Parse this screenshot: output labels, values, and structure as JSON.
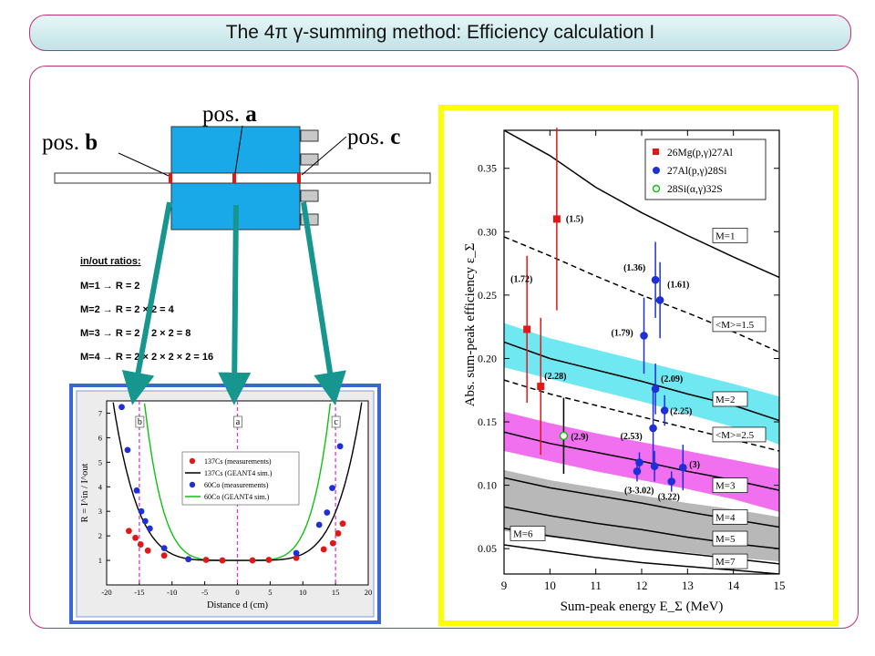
{
  "slide": {
    "title": "The 4π γ-summing method: Efficiency calculation I"
  },
  "detector": {
    "pos_a_prefix": "pos. ",
    "pos_a_letter": "a",
    "pos_b_prefix": "pos. ",
    "pos_b_letter": "b",
    "pos_c_prefix": "pos. ",
    "pos_c_letter": "c"
  },
  "ratios": {
    "heading": "in/out ratios:",
    "lines": [
      "M=1 → R = 2",
      "M=2 → R = 2 × 2  = 4",
      "M=3 → R = 2 × 2 × 2 = 8",
      "M=4 → R = 2 × 2 × 2 × 2 = 16"
    ]
  },
  "colors": {
    "title_border": "#c0307a",
    "arrow": "#17968f",
    "detector_fill": "#1aa9e8",
    "left_plot_frame": "#3a66d6",
    "right_plot_frame": "#ffff00",
    "cyan_band": "#6fe8f2",
    "magenta_band": "#f070f0",
    "gray_band": "#b8b8b8"
  },
  "chart_data": [
    {
      "type": "scatter",
      "xlabel": "Distance d (cm)",
      "ylabel": "R = I^in / I^out",
      "xlim": [
        -20,
        20
      ],
      "ylim": [
        0,
        7.5
      ],
      "x_ticks": [
        "-20",
        "-15",
        "-10",
        "-5",
        "0",
        "5",
        "10",
        "15",
        "20"
      ],
      "y_ticks": [
        "1",
        "2",
        "3",
        "4",
        "5",
        "6",
        "7"
      ],
      "position_markers": [
        {
          "label": "b",
          "x": -15
        },
        {
          "label": "a",
          "x": 0
        },
        {
          "label": "c",
          "x": 15
        }
      ],
      "legend": [
        "137Cs (measurements)",
        "137Cs (GEANT4 sim.)",
        "60Co (measurements)",
        "60Co (GEANT4 sim.)"
      ],
      "series": [
        {
          "name": "137Cs (measurements)",
          "color": "#e01818",
          "x": [
            -16.6,
            -15.6,
            -14.8,
            -13.7,
            -11.2,
            -7.5,
            -4.8,
            -2.3,
            2.3,
            4.8,
            9.0,
            13.2,
            14.6,
            15.4,
            16.1
          ],
          "y": [
            2.2,
            1.92,
            1.65,
            1.4,
            1.2,
            1.05,
            1.02,
            1.0,
            1.0,
            1.02,
            1.1,
            1.45,
            1.7,
            2.1,
            2.5
          ]
        },
        {
          "name": "60Co (measurements)",
          "color": "#1f2fd8",
          "x": [
            -17.7,
            -16.8,
            -15.4,
            -14.7,
            -14.1,
            -13.4,
            -11.2,
            -7.5,
            9.0,
            12.5,
            13.7,
            14.5,
            15.7
          ],
          "y": [
            7.25,
            5.5,
            3.85,
            3.0,
            2.6,
            2.3,
            1.5,
            1.05,
            1.3,
            2.45,
            2.95,
            3.95,
            5.65
          ]
        },
        {
          "name": "137Cs (GEANT4 sim.)",
          "color": "#000000",
          "kind": "line",
          "fn": "cs"
        },
        {
          "name": "60Co (GEANT4 sim.)",
          "color": "#10c010",
          "kind": "line",
          "fn": "co"
        }
      ]
    },
    {
      "type": "scatter",
      "xlabel": "Sum-peak energy E_Σ (MeV)",
      "ylabel": "Abs. sum-peak efficiency ε_Σ",
      "xlim": [
        9,
        15
      ],
      "ylim": [
        0.03,
        0.38
      ],
      "x_ticks": [
        "9",
        "10",
        "11",
        "12",
        "13",
        "14",
        "15"
      ],
      "y_ticks": [
        "0.05",
        "0.10",
        "0.15",
        "0.20",
        "0.25",
        "0.30",
        "0.35"
      ],
      "legend": [
        {
          "label": "26Mg(p,γ)27Al",
          "color": "#e01818",
          "marker": "square"
        },
        {
          "label": "27Al(p,γ)28Si",
          "color": "#1f2fd8",
          "marker": "circle"
        },
        {
          "label": "28Si(α,γ)32S",
          "color": "#10c010",
          "marker": "open-circle"
        }
      ],
      "curves": [
        {
          "label": "M=1",
          "style": "solid",
          "x": [
            9,
            10,
            11,
            12,
            13,
            14,
            15
          ],
          "y": [
            0.38,
            0.36,
            0.335,
            0.315,
            0.297,
            0.28,
            0.264
          ]
        },
        {
          "label": "<M>=1.5",
          "style": "dashed",
          "x": [
            9,
            10,
            11,
            12,
            13,
            14,
            15
          ],
          "y": [
            0.296,
            0.281,
            0.265,
            0.25,
            0.236,
            0.221,
            0.205
          ]
        },
        {
          "label": "M=2",
          "style": "solid-band",
          "x": [
            9,
            10,
            11,
            12,
            13,
            14,
            15
          ],
          "y": [
            0.213,
            0.2,
            0.191,
            0.182,
            0.172,
            0.163,
            0.151
          ],
          "band": [
            [
              0.228,
              0.193
            ],
            [
              0.216,
              0.184
            ],
            [
              0.207,
              0.175
            ],
            [
              0.198,
              0.166
            ],
            [
              0.189,
              0.156
            ],
            [
              0.18,
              0.146
            ],
            [
              0.17,
              0.132
            ]
          ]
        },
        {
          "label": "<M>=2.5",
          "style": "dashed",
          "x": [
            9,
            10,
            11,
            12,
            13,
            14,
            15
          ],
          "y": [
            0.183,
            0.172,
            0.163,
            0.154,
            0.145,
            0.136,
            0.127
          ]
        },
        {
          "label": "M=3",
          "style": "solid-band",
          "x": [
            9,
            10,
            11,
            12,
            13,
            14,
            15
          ],
          "y": [
            0.142,
            0.133,
            0.126,
            0.119,
            0.111,
            0.104,
            0.096
          ],
          "band": [
            [
              0.158,
              0.127
            ],
            [
              0.149,
              0.119
            ],
            [
              0.141,
              0.111
            ],
            [
              0.134,
              0.104
            ],
            [
              0.127,
              0.097
            ],
            [
              0.12,
              0.089
            ],
            [
              0.113,
              0.079
            ]
          ]
        },
        {
          "label": "M=4",
          "style": "solid-band",
          "x": [
            9,
            10,
            11,
            12,
            13,
            14,
            15
          ],
          "y": [
            0.106,
            0.098,
            0.092,
            0.086,
            0.079,
            0.073,
            0.067
          ],
          "band": [
            [
              0.112,
              0.064
            ],
            [
              0.104,
              0.059
            ],
            [
              0.098,
              0.055
            ],
            [
              0.092,
              0.05
            ],
            [
              0.086,
              0.047
            ],
            [
              0.081,
              0.043
            ],
            [
              0.075,
              0.04
            ]
          ]
        },
        {
          "label": "M=5",
          "style": "solid",
          "x": [
            9,
            10,
            11,
            12,
            13,
            14,
            15
          ],
          "y": [
            0.083,
            0.076,
            0.07,
            0.065,
            0.059,
            0.054,
            0.05
          ]
        },
        {
          "label": "M=6",
          "style": "solid",
          "x": [
            9,
            10,
            11,
            12,
            13,
            14,
            15
          ],
          "y": [
            0.066,
            0.06,
            0.055,
            0.05,
            0.046,
            0.042,
            0.038
          ]
        },
        {
          "label": "M=7",
          "style": "solid",
          "x": [
            9,
            10,
            11,
            12,
            13,
            14,
            15
          ],
          "y": [
            0.053,
            0.048,
            0.043,
            0.039,
            0.036,
            0.033,
            0.03
          ]
        }
      ],
      "points": [
        {
          "x": 9.5,
          "y": 0.223,
          "err": 0.058,
          "marker": "square",
          "color": "#e01818",
          "label": "(1.72)"
        },
        {
          "x": 9.8,
          "y": 0.178,
          "err": 0.054,
          "marker": "square",
          "color": "#e01818",
          "label": "(2.28)"
        },
        {
          "x": 10.15,
          "y": 0.31,
          "err": 0.072,
          "marker": "square",
          "color": "#e01818",
          "label": "(1.5)"
        },
        {
          "x": 10.3,
          "y": 0.139,
          "err": 0.03,
          "marker": "open-circle",
          "color": "#10c010",
          "label": "(2.9)"
        },
        {
          "x": 11.9,
          "y": 0.111,
          "err": 0.008,
          "marker": "circle",
          "color": "#1f2fd8",
          "label": "(3-3.02)"
        },
        {
          "x": 11.95,
          "y": 0.118,
          "err": 0.008,
          "marker": "circle",
          "color": "#1f2fd8",
          "label": ""
        },
        {
          "x": 12.05,
          "y": 0.218,
          "err": 0.03,
          "marker": "circle",
          "color": "#1f2fd8",
          "label": "(1.79)"
        },
        {
          "x": 12.25,
          "y": 0.145,
          "err": 0.03,
          "marker": "circle",
          "color": "#1f2fd8",
          "label": "(2.53)"
        },
        {
          "x": 12.28,
          "y": 0.115,
          "err": 0.012,
          "marker": "circle",
          "color": "#1f2fd8",
          "label": ""
        },
        {
          "x": 12.3,
          "y": 0.176,
          "err": 0.02,
          "marker": "circle",
          "color": "#1f2fd8",
          "label": "(2.09)"
        },
        {
          "x": 12.3,
          "y": 0.262,
          "err": 0.03,
          "marker": "circle",
          "color": "#1f2fd8",
          "label": "(1.36)"
        },
        {
          "x": 12.4,
          "y": 0.246,
          "err": 0.03,
          "marker": "circle",
          "color": "#1f2fd8",
          "label": "(1.61)"
        },
        {
          "x": 12.5,
          "y": 0.159,
          "err": 0.012,
          "marker": "circle",
          "color": "#1f2fd8",
          "label": "(2.25)"
        },
        {
          "x": 12.65,
          "y": 0.103,
          "err": 0.008,
          "marker": "circle",
          "color": "#1f2fd8",
          "label": "(3.22)"
        },
        {
          "x": 12.9,
          "y": 0.114,
          "err": 0.018,
          "marker": "circle",
          "color": "#1f2fd8",
          "label": "(3)"
        }
      ]
    }
  ]
}
